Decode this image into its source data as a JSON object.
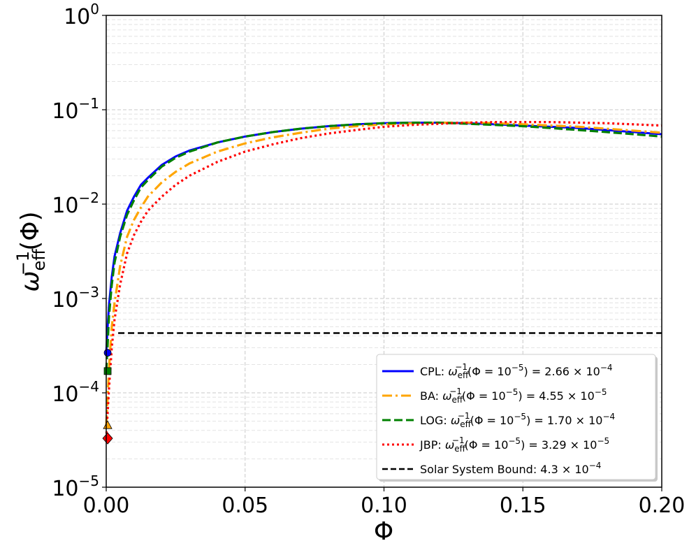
{
  "chart_data": {
    "type": "line",
    "xlabel": "Φ",
    "ylabel": "ω_eff^−1(Φ)",
    "xlim": [
      0,
      0.2
    ],
    "ylim": [
      1e-05,
      1
    ],
    "yscale": "log",
    "grid": true,
    "legend_position": "lower-right",
    "x_ticks": [
      "0.00",
      "0.05",
      "0.10",
      "0.15",
      "0.20"
    ],
    "y_ticks": [
      {
        "base": "10",
        "exp": "−5",
        "value": 1e-05
      },
      {
        "base": "10",
        "exp": "−4",
        "value": 0.0001
      },
      {
        "base": "10",
        "exp": "−3",
        "value": 0.001
      },
      {
        "base": "10",
        "exp": "−2",
        "value": 0.01
      },
      {
        "base": "10",
        "exp": "−1",
        "value": 0.1
      },
      {
        "base": "10",
        "exp": "0",
        "value": 1
      }
    ],
    "series": [
      {
        "name": "CPL",
        "legend_value": "2.66 × 10",
        "legend_exp": "−4",
        "color": "#0000ff",
        "style": "solid",
        "marker": "circle",
        "marker_point": [
          1e-05,
          0.000266
        ],
        "x": [
          1e-05,
          0.0005,
          0.001,
          0.002,
          0.003,
          0.005,
          0.0075,
          0.01,
          0.0125,
          0.015,
          0.02,
          0.025,
          0.03,
          0.04,
          0.05,
          0.06,
          0.07,
          0.08,
          0.09,
          0.1,
          0.11,
          0.12,
          0.13,
          0.14,
          0.15,
          0.16,
          0.17,
          0.18,
          0.19,
          0.2
        ],
        "y": [
          0.000266,
          0.0005,
          0.00085,
          0.0017,
          0.0028,
          0.0049,
          0.0085,
          0.012,
          0.016,
          0.019,
          0.026,
          0.032,
          0.037,
          0.045,
          0.052,
          0.058,
          0.063,
          0.067,
          0.07,
          0.072,
          0.073,
          0.073,
          0.072,
          0.07,
          0.068,
          0.066,
          0.064,
          0.061,
          0.058,
          0.055
        ]
      },
      {
        "name": "BA",
        "legend_value": "4.55 × 10",
        "legend_exp": "−5",
        "color": "#ffa500",
        "style": "dashdot",
        "marker": "triangle",
        "marker_point": [
          1e-05,
          4.55e-05
        ],
        "x": [
          1e-05,
          0.0005,
          0.001,
          0.002,
          0.003,
          0.005,
          0.0075,
          0.01,
          0.0125,
          0.015,
          0.02,
          0.025,
          0.03,
          0.04,
          0.05,
          0.06,
          0.07,
          0.08,
          0.09,
          0.1,
          0.11,
          0.12,
          0.13,
          0.14,
          0.15,
          0.16,
          0.17,
          0.18,
          0.19,
          0.2
        ],
        "y": [
          4.55e-05,
          9e-05,
          0.00018,
          0.0005,
          0.0009,
          0.0022,
          0.0045,
          0.0068,
          0.0092,
          0.012,
          0.017,
          0.022,
          0.027,
          0.036,
          0.044,
          0.051,
          0.057,
          0.063,
          0.067,
          0.07,
          0.072,
          0.073,
          0.073,
          0.072,
          0.07,
          0.068,
          0.066,
          0.063,
          0.06,
          0.057
        ]
      },
      {
        "name": "LOG",
        "legend_value": "1.70 × 10",
        "legend_exp": "−4",
        "color": "#008000",
        "style": "dashed",
        "marker": "square",
        "marker_point": [
          1e-05,
          0.00017
        ],
        "x": [
          1e-05,
          0.0005,
          0.001,
          0.002,
          0.003,
          0.005,
          0.0075,
          0.01,
          0.0125,
          0.015,
          0.02,
          0.025,
          0.03,
          0.04,
          0.05,
          0.06,
          0.07,
          0.08,
          0.09,
          0.1,
          0.11,
          0.12,
          0.13,
          0.14,
          0.15,
          0.16,
          0.17,
          0.18,
          0.19,
          0.2
        ],
        "y": [
          0.00017,
          0.00032,
          0.00065,
          0.0014,
          0.0024,
          0.0045,
          0.0077,
          0.011,
          0.015,
          0.018,
          0.025,
          0.031,
          0.036,
          0.045,
          0.052,
          0.058,
          0.063,
          0.067,
          0.07,
          0.072,
          0.073,
          0.073,
          0.071,
          0.069,
          0.067,
          0.064,
          0.061,
          0.058,
          0.055,
          0.052
        ]
      },
      {
        "name": "JBP",
        "legend_value": "3.29 × 10",
        "legend_exp": "−5",
        "color": "#ff0000",
        "style": "dotted",
        "marker": "diamond",
        "marker_point": [
          1e-05,
          3.29e-05
        ],
        "x": [
          1e-05,
          0.0005,
          0.001,
          0.002,
          0.003,
          0.005,
          0.0075,
          0.01,
          0.0125,
          0.015,
          0.02,
          0.025,
          0.03,
          0.04,
          0.05,
          0.06,
          0.07,
          0.08,
          0.09,
          0.1,
          0.11,
          0.12,
          0.13,
          0.14,
          0.15,
          0.16,
          0.17,
          0.18,
          0.19,
          0.2
        ],
        "y": [
          3.29e-05,
          6e-05,
          0.00011,
          0.0003,
          0.0006,
          0.0014,
          0.003,
          0.0047,
          0.0065,
          0.0085,
          0.012,
          0.016,
          0.02,
          0.028,
          0.036,
          0.043,
          0.05,
          0.056,
          0.061,
          0.066,
          0.069,
          0.071,
          0.073,
          0.074,
          0.074,
          0.074,
          0.073,
          0.072,
          0.07,
          0.068
        ]
      }
    ],
    "reference_line": {
      "name": "Solar System Bound",
      "legend_value": "4.3 × 10",
      "legend_exp": "−4",
      "y": 0.00043,
      "x_start": 0.0043,
      "x_end": 0.2,
      "color": "#000000",
      "style": "dashed"
    },
    "legend_expression": {
      "omega": "ω",
      "sub": "eff",
      "sup": "−1",
      "arg_open": "(Φ = 10",
      "arg_exp": "−5",
      "arg_close": ") = "
    }
  }
}
